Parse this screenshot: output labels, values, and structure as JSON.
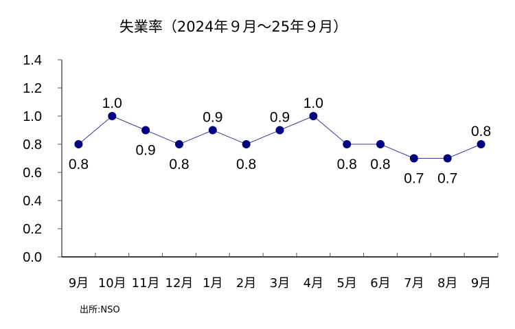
{
  "chart_data": {
    "type": "line",
    "title": "失業率（2024年９月～25年９月）",
    "xlabel": "",
    "ylabel": "",
    "categories": [
      "9月",
      "10月",
      "11月",
      "12月",
      "1月",
      "2月",
      "3月",
      "4月",
      "5月",
      "6月",
      "7月",
      "8月",
      "9月"
    ],
    "series": [
      {
        "name": "失業率",
        "values": [
          0.8,
          1.0,
          0.9,
          0.8,
          0.9,
          0.8,
          0.9,
          1.0,
          0.8,
          0.8,
          0.7,
          0.7,
          0.8
        ]
      }
    ],
    "data_labels": [
      "0.8",
      "1.0",
      "0.9",
      "0.8",
      "0.9",
      "0.8",
      "0.9",
      "1.0",
      "0.8",
      "0.8",
      "0.7",
      "0.7",
      "0.8"
    ],
    "label_positions": [
      "below",
      "above",
      "below",
      "below",
      "above",
      "below",
      "above",
      "above",
      "below",
      "below",
      "below",
      "below",
      "above"
    ],
    "yticks": [
      "0.0",
      "0.2",
      "0.4",
      "0.6",
      "0.8",
      "1.0",
      "1.2",
      "1.4"
    ],
    "ylim": [
      0,
      1.4
    ],
    "grid": false,
    "legend": null,
    "source": "出所:NSO",
    "colors": {
      "line": "#3a3a9a",
      "marker": "#000080",
      "axis": "#000000"
    }
  }
}
